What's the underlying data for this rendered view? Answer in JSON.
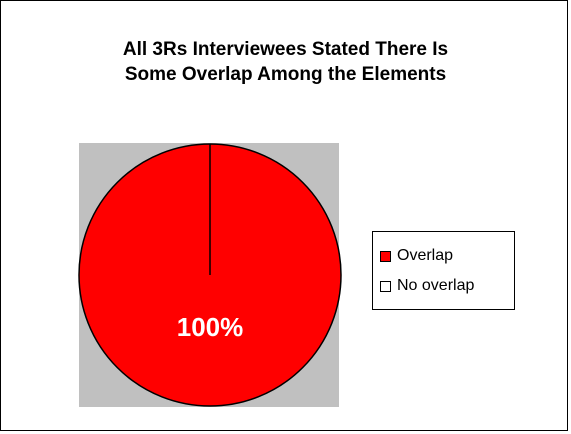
{
  "chart_data": {
    "type": "pie",
    "title_lines": [
      "All 3Rs Interviewees Stated There Is",
      "Some Overlap Among the Elements"
    ],
    "slices": [
      {
        "label": "Overlap",
        "value": 100,
        "color": "#FF0000",
        "data_label": "100%"
      },
      {
        "label": "No overlap",
        "value": 0,
        "color": "#FFFFFF",
        "data_label": ""
      }
    ],
    "legend_placement": "right",
    "plot_area_color": "#C0C0C0"
  }
}
